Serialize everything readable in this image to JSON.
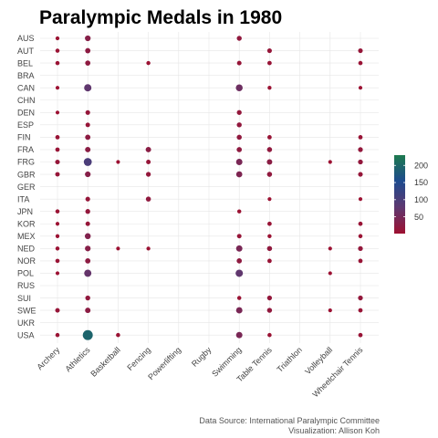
{
  "chart_data": {
    "type": "scatter",
    "title": "Paralympic Medals in 1980",
    "xlabel": "",
    "ylabel": "",
    "x_categories": [
      "Archery",
      "Athletics",
      "Basketball",
      "Fencing",
      "Powerlifting",
      "Rugby",
      "Swimming",
      "Table Tennis",
      "Triathlon",
      "Volleyball",
      "Wheelchair Tennis"
    ],
    "y_categories": [
      "AUS",
      "AUT",
      "BEL",
      "BRA",
      "CAN",
      "CHN",
      "DEN",
      "ESP",
      "FIN",
      "FRA",
      "FRG",
      "GBR",
      "GER",
      "ITA",
      "JPN",
      "KOR",
      "MEX",
      "NED",
      "NOR",
      "POL",
      "RUS",
      "SUI",
      "SWE",
      "UKR",
      "USA"
    ],
    "points": [
      {
        "country": "AUS",
        "sport": "Archery",
        "medals": 4
      },
      {
        "country": "AUS",
        "sport": "Athletics",
        "medals": 30
      },
      {
        "country": "AUS",
        "sport": "Swimming",
        "medals": 16
      },
      {
        "country": "AUT",
        "sport": "Archery",
        "medals": 6
      },
      {
        "country": "AUT",
        "sport": "Athletics",
        "medals": 22
      },
      {
        "country": "AUT",
        "sport": "Table Tennis",
        "medals": 12
      },
      {
        "country": "AUT",
        "sport": "Wheelchair Tennis",
        "medals": 12
      },
      {
        "country": "BEL",
        "sport": "Archery",
        "medals": 6
      },
      {
        "country": "BEL",
        "sport": "Athletics",
        "medals": 20
      },
      {
        "country": "BEL",
        "sport": "Fencing",
        "medals": 5
      },
      {
        "country": "BEL",
        "sport": "Swimming",
        "medals": 10
      },
      {
        "country": "BEL",
        "sport": "Table Tennis",
        "medals": 8
      },
      {
        "country": "BEL",
        "sport": "Wheelchair Tennis",
        "medals": 7
      },
      {
        "country": "CAN",
        "sport": "Archery",
        "medals": 3
      },
      {
        "country": "CAN",
        "sport": "Athletics",
        "medals": 75
      },
      {
        "country": "CAN",
        "sport": "Swimming",
        "medals": 60
      },
      {
        "country": "CAN",
        "sport": "Table Tennis",
        "medals": 4
      },
      {
        "country": "CAN",
        "sport": "Wheelchair Tennis",
        "medals": 3
      },
      {
        "country": "DEN",
        "sport": "Archery",
        "medals": 3
      },
      {
        "country": "DEN",
        "sport": "Athletics",
        "medals": 12
      },
      {
        "country": "DEN",
        "sport": "Swimming",
        "medals": 14
      },
      {
        "country": "ESP",
        "sport": "Athletics",
        "medals": 10
      },
      {
        "country": "ESP",
        "sport": "Swimming",
        "medals": 16
      },
      {
        "country": "FIN",
        "sport": "Archery",
        "medals": 8
      },
      {
        "country": "FIN",
        "sport": "Athletics",
        "medals": 22
      },
      {
        "country": "FIN",
        "sport": "Swimming",
        "medals": 18
      },
      {
        "country": "FIN",
        "sport": "Table Tennis",
        "medals": 8
      },
      {
        "country": "FIN",
        "sport": "Wheelchair Tennis",
        "medals": 8
      },
      {
        "country": "FRA",
        "sport": "Archery",
        "medals": 8
      },
      {
        "country": "FRA",
        "sport": "Athletics",
        "medals": 25
      },
      {
        "country": "FRA",
        "sport": "Fencing",
        "medals": 25
      },
      {
        "country": "FRA",
        "sport": "Swimming",
        "medals": 20
      },
      {
        "country": "FRA",
        "sport": "Table Tennis",
        "medals": 18
      },
      {
        "country": "FRA",
        "sport": "Wheelchair Tennis",
        "medals": 14
      },
      {
        "country": "FRG",
        "sport": "Archery",
        "medals": 12
      },
      {
        "country": "FRG",
        "sport": "Athletics",
        "medals": 100
      },
      {
        "country": "FRG",
        "sport": "Basketball",
        "medals": 3
      },
      {
        "country": "FRG",
        "sport": "Fencing",
        "medals": 10
      },
      {
        "country": "FRG",
        "sport": "Swimming",
        "medals": 45
      },
      {
        "country": "FRG",
        "sport": "Table Tennis",
        "medals": 25
      },
      {
        "country": "FRG",
        "sport": "Volleyball",
        "medals": 3
      },
      {
        "country": "FRG",
        "sport": "Wheelchair Tennis",
        "medals": 15
      },
      {
        "country": "GBR",
        "sport": "Archery",
        "medals": 10
      },
      {
        "country": "GBR",
        "sport": "Athletics",
        "medals": 30
      },
      {
        "country": "GBR",
        "sport": "Fencing",
        "medals": 14
      },
      {
        "country": "GBR",
        "sport": "Swimming",
        "medals": 40
      },
      {
        "country": "GBR",
        "sport": "Table Tennis",
        "medals": 18
      },
      {
        "country": "GBR",
        "sport": "Wheelchair Tennis",
        "medals": 12
      },
      {
        "country": "ITA",
        "sport": "Athletics",
        "medals": 12
      },
      {
        "country": "ITA",
        "sport": "Fencing",
        "medals": 18
      },
      {
        "country": "ITA",
        "sport": "Table Tennis",
        "medals": 3
      },
      {
        "country": "ITA",
        "sport": "Wheelchair Tennis",
        "medals": 3
      },
      {
        "country": "JPN",
        "sport": "Archery",
        "medals": 6
      },
      {
        "country": "JPN",
        "sport": "Athletics",
        "medals": 14
      },
      {
        "country": "JPN",
        "sport": "Swimming",
        "medals": 5
      },
      {
        "country": "KOR",
        "sport": "Archery",
        "medals": 3
      },
      {
        "country": "KOR",
        "sport": "Athletics",
        "medals": 10
      },
      {
        "country": "KOR",
        "sport": "Table Tennis",
        "medals": 8
      },
      {
        "country": "KOR",
        "sport": "Wheelchair Tennis",
        "medals": 8
      },
      {
        "country": "MEX",
        "sport": "Archery",
        "medals": 4
      },
      {
        "country": "MEX",
        "sport": "Athletics",
        "medals": 35
      },
      {
        "country": "MEX",
        "sport": "Swimming",
        "medals": 10
      },
      {
        "country": "MEX",
        "sport": "Table Tennis",
        "medals": 5
      },
      {
        "country": "MEX",
        "sport": "Wheelchair Tennis",
        "medals": 6
      },
      {
        "country": "NED",
        "sport": "Archery",
        "medals": 5
      },
      {
        "country": "NED",
        "sport": "Athletics",
        "medals": 30
      },
      {
        "country": "NED",
        "sport": "Basketball",
        "medals": 3
      },
      {
        "country": "NED",
        "sport": "Fencing",
        "medals": 4
      },
      {
        "country": "NED",
        "sport": "Swimming",
        "medals": 45
      },
      {
        "country": "NED",
        "sport": "Table Tennis",
        "medals": 18
      },
      {
        "country": "NED",
        "sport": "Volleyball",
        "medals": 3
      },
      {
        "country": "NED",
        "sport": "Wheelchair Tennis",
        "medals": 14
      },
      {
        "country": "NOR",
        "sport": "Archery",
        "medals": 7
      },
      {
        "country": "NOR",
        "sport": "Athletics",
        "medals": 22
      },
      {
        "country": "NOR",
        "sport": "Swimming",
        "medals": 20
      },
      {
        "country": "NOR",
        "sport": "Table Tennis",
        "medals": 8
      },
      {
        "country": "NOR",
        "sport": "Wheelchair Tennis",
        "medals": 8
      },
      {
        "country": "POL",
        "sport": "Archery",
        "medals": 3
      },
      {
        "country": "POL",
        "sport": "Athletics",
        "medals": 70
      },
      {
        "country": "POL",
        "sport": "Swimming",
        "medals": 75
      },
      {
        "country": "POL",
        "sport": "Volleyball",
        "medals": 3
      },
      {
        "country": "SUI",
        "sport": "Athletics",
        "medals": 16
      },
      {
        "country": "SUI",
        "sport": "Swimming",
        "medals": 6
      },
      {
        "country": "SUI",
        "sport": "Table Tennis",
        "medals": 14
      },
      {
        "country": "SUI",
        "sport": "Wheelchair Tennis",
        "medals": 14
      },
      {
        "country": "SWE",
        "sport": "Archery",
        "medals": 10
      },
      {
        "country": "SWE",
        "sport": "Athletics",
        "medals": 24
      },
      {
        "country": "SWE",
        "sport": "Swimming",
        "medals": 45
      },
      {
        "country": "SWE",
        "sport": "Table Tennis",
        "medals": 16
      },
      {
        "country": "SWE",
        "sport": "Volleyball",
        "medals": 3
      },
      {
        "country": "SWE",
        "sport": "Wheelchair Tennis",
        "medals": 8
      },
      {
        "country": "USA",
        "sport": "Archery",
        "medals": 6
      },
      {
        "country": "USA",
        "sport": "Athletics",
        "medals": 195
      },
      {
        "country": "USA",
        "sport": "Basketball",
        "medals": 6
      },
      {
        "country": "USA",
        "sport": "Swimming",
        "medals": 45
      },
      {
        "country": "USA",
        "sport": "Table Tennis",
        "medals": 6
      },
      {
        "country": "USA",
        "sport": "Wheelchair Tennis",
        "medals": 8
      }
    ],
    "legend": {
      "placement": "right",
      "ticks": [
        50,
        100,
        150,
        200
      ],
      "range": [
        1,
        230
      ],
      "colors": [
        "#9e1030",
        "#5e3870",
        "#1e4a8e",
        "#1d7a4f"
      ]
    },
    "grid": true,
    "caption": [
      "Data Source: International Paralympic Committee",
      "Visualization: Allison Koh"
    ]
  }
}
